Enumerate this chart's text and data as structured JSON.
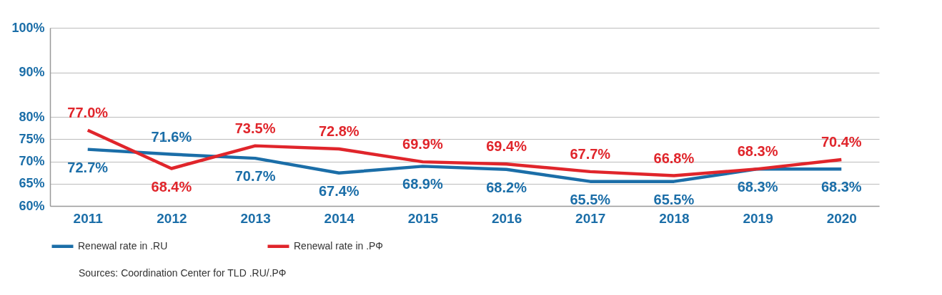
{
  "chart_data": {
    "type": "line",
    "categories": [
      "2011",
      "2012",
      "2013",
      "2014",
      "2015",
      "2016",
      "2017",
      "2018",
      "2019",
      "2020"
    ],
    "series": [
      {
        "name": "Renewal rate in .RU",
        "color": "#1b6ea8",
        "values": [
          72.7,
          71.6,
          70.7,
          67.4,
          68.9,
          68.2,
          65.5,
          65.5,
          68.3,
          68.3
        ],
        "value_labels": [
          "72.7%",
          "71.6%",
          "70.7%",
          "67.4%",
          "68.9%",
          "68.2%",
          "65.5%",
          "65.5%",
          "68.3%",
          "68.3%"
        ]
      },
      {
        "name": "Renewal rate in .РФ",
        "color": "#e0252b",
        "values": [
          77.0,
          68.4,
          73.5,
          72.8,
          69.9,
          69.4,
          67.7,
          66.8,
          68.3,
          70.4
        ],
        "value_labels": [
          "77.0%",
          "68.4%",
          "73.5%",
          "72.8%",
          "69.9%",
          "69.4%",
          "67.7%",
          "66.8%",
          "68.3%",
          "70.4%"
        ]
      }
    ],
    "ylim": [
      60,
      100
    ],
    "yticks": [
      {
        "value": 60,
        "label": "60%"
      },
      {
        "value": 65,
        "label": "65%"
      },
      {
        "value": 70,
        "label": "70%"
      },
      {
        "value": 75,
        "label": "75%"
      },
      {
        "value": 80,
        "label": "80%"
      },
      {
        "value": 90,
        "label": "90%"
      },
      {
        "value": 100,
        "label": "100%"
      }
    ],
    "grid": "y",
    "legend": "bottom",
    "marker": "none",
    "line_style": "solid",
    "annotations": [
      "Sources: Coordination Center for TLD .RU/.РФ"
    ]
  }
}
